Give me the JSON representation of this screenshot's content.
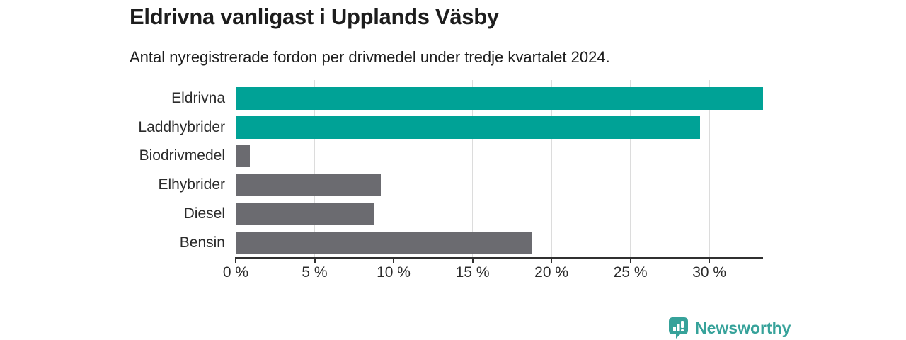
{
  "header": {
    "title": "Eldrivna vanligast i Upplands Väsby",
    "subtitle": "Antal nyregistrerade fordon per drivmedel under tredje kvartalet 2024."
  },
  "chart_data": {
    "type": "bar",
    "orientation": "horizontal",
    "title": "Eldrivna vanligast i Upplands Väsby",
    "subtitle": "Antal nyregistrerade fordon per drivmedel under tredje kvartalet 2024.",
    "categories": [
      "Eldrivna",
      "Laddhybrider",
      "Biodrivmedel",
      "Elhybrider",
      "Diesel",
      "Bensin"
    ],
    "values": [
      33.4,
      29.4,
      0.9,
      9.2,
      8.8,
      18.8
    ],
    "unit": "%",
    "bar_colors": [
      "#00a296",
      "#00a296",
      "#6b6b70",
      "#6b6b70",
      "#6b6b70",
      "#6b6b70"
    ],
    "xlim": [
      0,
      33.4
    ],
    "xticks": [
      0,
      5,
      10,
      15,
      20,
      25,
      30
    ],
    "xtick_labels": [
      "0 %",
      "5 %",
      "10 %",
      "15 %",
      "20 %",
      "25 %",
      "30 %"
    ],
    "grid": "vertical-gridlines-on",
    "legend": "none",
    "xlabel": "",
    "ylabel": ""
  },
  "branding": {
    "logo_text": "Newsworthy",
    "logo_icon": "bar-chart-pin-icon",
    "logo_color": "#36a29a"
  },
  "colors": {
    "accent_teal": "#00a296",
    "neutral_gray": "#6b6b70",
    "gridline": "#dcdcdc",
    "axis": "#303030",
    "text": "#1d1d1d"
  }
}
